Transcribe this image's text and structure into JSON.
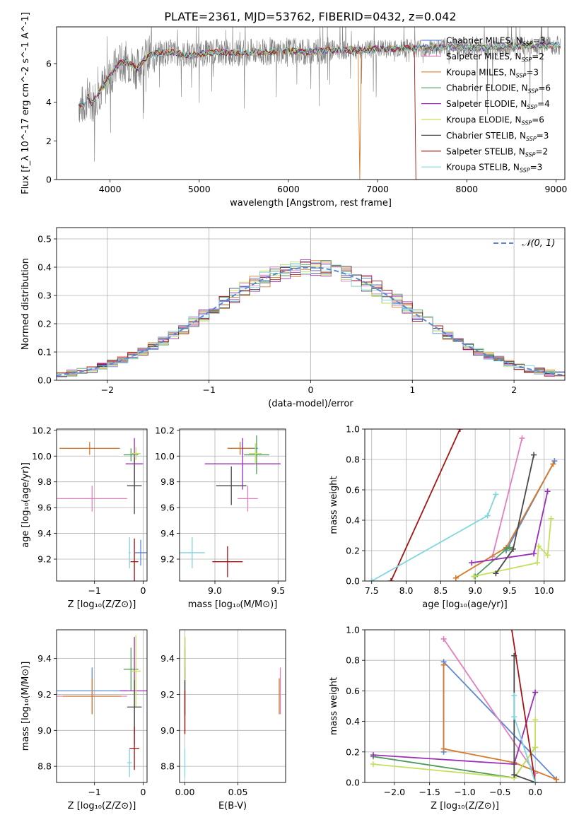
{
  "title": "PLATE=2361, MJD=53762, FIBERID=0432, z=0.042",
  "colors": {
    "chabrier_miles": "#5a87d6",
    "salpeter_miles": "#e47fbf",
    "kroupa_miles": "#d77a2a",
    "chabrier_elodie": "#4f9b5a",
    "salpeter_elodie": "#9b2fb8",
    "kroupa_elodie": "#c4e05a",
    "chabrier_stelib": "#4a4a4a",
    "salpeter_stelib": "#a31515",
    "kroupa_stelib": "#7fd6df",
    "data": "#808080",
    "normal": "#5a87d6"
  },
  "chart_data": [
    {
      "panel": "spectrum",
      "type": "line",
      "xlabel": "wavelength [Angstrom, rest frame]",
      "ylabel": "Flux [f_λ 10^-17 erg cm^-2 s^-1 A^-1]",
      "xlim": [
        3400,
        9100
      ],
      "ylim": [
        0,
        7.9
      ],
      "xticks": [
        "4000",
        "5000",
        "6000",
        "7000",
        "8000",
        "9000"
      ],
      "yticks": [
        "0",
        "2",
        "4",
        "6"
      ],
      "legend_position": "upper right",
      "series": [
        {
          "name": "Chabrier MILES, N_SSP=3",
          "key": "chabrier_miles"
        },
        {
          "name": "Salpeter MILES, N_SSP=2",
          "key": "salpeter_miles"
        },
        {
          "name": "Kroupa MILES, N_SSP=3",
          "key": "kroupa_miles"
        },
        {
          "name": "Chabrier ELODIE, N_SSP=6",
          "key": "chabrier_elodie"
        },
        {
          "name": "Salpeter ELODIE, N_SSP=4",
          "key": "salpeter_elodie"
        },
        {
          "name": "Kroupa ELODIE, N_SSP=6",
          "key": "kroupa_elodie"
        },
        {
          "name": "Chabrier STELIB, N_SSP=3",
          "key": "chabrier_stelib"
        },
        {
          "name": "Salpeter STELIB, N_SSP=2",
          "key": "salpeter_stelib"
        },
        {
          "name": "Kroupa STELIB, N_SSP=3",
          "key": "kroupa_stelib"
        }
      ],
      "continuum": [
        [
          3650,
          3.9
        ],
        [
          3700,
          3.8
        ],
        [
          3750,
          4.3
        ],
        [
          3800,
          3.9
        ],
        [
          3850,
          4.4
        ],
        [
          3900,
          4.7
        ],
        [
          3950,
          4.9
        ],
        [
          4000,
          5.4
        ],
        [
          4100,
          6.0
        ],
        [
          4200,
          6.1
        ],
        [
          4300,
          5.7
        ],
        [
          4400,
          6.3
        ],
        [
          4500,
          6.5
        ],
        [
          4700,
          6.6
        ],
        [
          4900,
          6.4
        ],
        [
          5000,
          6.5
        ],
        [
          5200,
          6.6
        ],
        [
          5400,
          6.55
        ],
        [
          5600,
          6.6
        ],
        [
          5800,
          6.6
        ],
        [
          6000,
          6.65
        ],
        [
          6200,
          6.6
        ],
        [
          6500,
          6.7
        ],
        [
          6800,
          6.7
        ],
        [
          7000,
          6.75
        ],
        [
          7400,
          6.8
        ],
        [
          7800,
          6.85
        ],
        [
          8200,
          6.8
        ],
        [
          8600,
          6.9
        ],
        [
          9000,
          6.95
        ]
      ],
      "notes": "data spectrum plotted in gray with model fits overlaid"
    },
    {
      "panel": "residuals",
      "type": "line",
      "xlabel": "(data-model)/error",
      "ylabel": "Normed distribution",
      "xlim": [
        -2.5,
        2.5
      ],
      "ylim": [
        0,
        0.54
      ],
      "xticks": [
        "−2",
        "−1",
        "0",
        "1",
        "2"
      ],
      "yticks": [
        "0.0",
        "0.1",
        "0.2",
        "0.3",
        "0.4",
        "0.5"
      ],
      "legend": "𝒩(0, 1)",
      "normal": {
        "mu": 0,
        "sigma": 1
      }
    },
    {
      "panel": "age_vs_Z",
      "type": "scatter",
      "xlabel": "Z [log₁₀(Z/Z⊙)]",
      "ylabel": "age  [log₁₀(age/yr)]",
      "xlim": [
        -1.78,
        0.08
      ],
      "ylim": [
        9.03,
        10.21
      ],
      "xticks": [
        "−1",
        "0"
      ],
      "yticks": [
        "9.2",
        "9.4",
        "9.6",
        "9.8",
        "10.0",
        "10.2"
      ],
      "points": [
        {
          "key": "chabrier_miles",
          "x": -0.05,
          "y": 9.25,
          "ex": 0.12,
          "ey": 0.1
        },
        {
          "key": "salpeter_miles",
          "x": -1.05,
          "y": 9.67,
          "ex": 0.72,
          "ey": 0.1
        },
        {
          "key": "kroupa_miles",
          "x": -1.1,
          "y": 10.06,
          "ex": 0.62,
          "ey": 0.05
        },
        {
          "key": "chabrier_elodie",
          "x": -0.25,
          "y": 10.01,
          "ex": 0.15,
          "ey": 0.05
        },
        {
          "key": "salpeter_elodie",
          "x": -0.18,
          "y": 9.94,
          "ex": 0.18,
          "ey": 0.2
        },
        {
          "key": "kroupa_elodie",
          "x": -0.15,
          "y": 10.02,
          "ex": 0.1,
          "ey": 0.05
        },
        {
          "key": "chabrier_stelib",
          "x": -0.18,
          "y": 9.77,
          "ex": 0.15,
          "ey": 0.22
        },
        {
          "key": "salpeter_stelib",
          "x": -0.18,
          "y": 9.18,
          "ex": 0.08,
          "ey": 0.18
        },
        {
          "key": "kroupa_stelib",
          "x": -0.28,
          "y": 9.25,
          "ex": 0.02,
          "ey": 0.12
        }
      ]
    },
    {
      "panel": "age_vs_mass",
      "type": "scatter",
      "xlabel": "mass [log₁₀(M/M⊙)]",
      "ylabel": "",
      "xlim": [
        8.72,
        9.56
      ],
      "ylim": [
        9.03,
        10.21
      ],
      "xticks": [
        "9.0",
        "9.5"
      ],
      "yticks": [
        "9.2",
        "9.4",
        "9.6",
        "9.8",
        "10.0",
        "10.2"
      ],
      "points": [
        {
          "key": "chabrier_miles",
          "x": 9.22,
          "y": 10.06,
          "ex": 0.12,
          "ey": 0.05
        },
        {
          "key": "salpeter_miles",
          "x": 9.26,
          "y": 9.67,
          "ex": 0.08,
          "ey": 0.1
        },
        {
          "key": "kroupa_miles",
          "x": 9.2,
          "y": 10.06,
          "ex": 0.1,
          "ey": 0.05
        },
        {
          "key": "chabrier_elodie",
          "x": 9.33,
          "y": 10.01,
          "ex": 0.1,
          "ey": 0.15
        },
        {
          "key": "salpeter_elodie",
          "x": 9.22,
          "y": 9.94,
          "ex": 0.3,
          "ey": 0.2
        },
        {
          "key": "kroupa_elodie",
          "x": 9.32,
          "y": 10.02,
          "ex": 0.05,
          "ey": 0.08
        },
        {
          "key": "chabrier_stelib",
          "x": 9.13,
          "y": 9.77,
          "ex": 0.12,
          "ey": 0.15
        },
        {
          "key": "salpeter_stelib",
          "x": 9.1,
          "y": 9.18,
          "ex": 0.12,
          "ey": 0.12
        },
        {
          "key": "kroupa_stelib",
          "x": 8.82,
          "y": 9.25,
          "ex": 0.1,
          "ey": 0.12
        }
      ]
    },
    {
      "panel": "mass_weight_vs_age",
      "type": "line",
      "xlabel": "age  [log₁₀(age/yr)]",
      "ylabel": "mass weight",
      "xlim": [
        7.4,
        10.3
      ],
      "ylim": [
        0,
        1.0
      ],
      "xticks": [
        "7.5",
        "8.0",
        "8.5",
        "9.0",
        "9.5",
        "10.0"
      ],
      "yticks": [
        "0.0",
        "0.2",
        "0.4",
        "0.6",
        "0.8",
        "1.0"
      ],
      "series": [
        {
          "key": "chabrier_miles",
          "points": [
            [
              9.45,
              0.2
            ],
            [
              10.15,
              0.79
            ]
          ]
        },
        {
          "key": "salpeter_miles",
          "points": [
            [
              9.25,
              0.16
            ],
            [
              9.68,
              0.94
            ]
          ]
        },
        {
          "key": "kroupa_miles",
          "points": [
            [
              8.72,
              0.02
            ],
            [
              9.45,
              0.22
            ],
            [
              10.13,
              0.77
            ]
          ]
        },
        {
          "key": "chabrier_elodie",
          "points": [
            [
              9.0,
              0.03
            ],
            [
              9.45,
              0.21
            ],
            [
              9.5,
              0.22
            ]
          ]
        },
        {
          "key": "salpeter_elodie",
          "points": [
            [
              8.95,
              0.12
            ],
            [
              9.85,
              0.18
            ],
            [
              10.05,
              0.59
            ]
          ]
        },
        {
          "key": "kroupa_elodie",
          "points": [
            [
              8.98,
              0.03
            ],
            [
              9.9,
              0.12
            ],
            [
              9.92,
              0.23
            ],
            [
              10.05,
              0.17
            ],
            [
              10.1,
              0.41
            ]
          ]
        },
        {
          "key": "chabrier_stelib",
          "points": [
            [
              9.3,
              0.05
            ],
            [
              9.55,
              0.21
            ],
            [
              9.85,
              0.83
            ]
          ]
        },
        {
          "key": "salpeter_stelib",
          "points": [
            [
              7.78,
              0.0
            ],
            [
              8.78,
              1.0
            ]
          ]
        },
        {
          "key": "kroupa_stelib",
          "points": [
            [
              7.5,
              0.0
            ],
            [
              9.18,
              0.43
            ],
            [
              9.3,
              0.57
            ]
          ]
        }
      ]
    },
    {
      "panel": "mass_vs_Z",
      "type": "scatter",
      "xlabel": "Z [log₁₀(Z/Z⊙)]",
      "ylabel": "mass [log₁₀(M/M⊙)]",
      "xlim": [
        -1.78,
        0.08
      ],
      "ylim": [
        8.71,
        9.56
      ],
      "xticks": [
        "−1",
        "0"
      ],
      "yticks": [
        "8.8",
        "9.0",
        "9.2",
        "9.4"
      ],
      "points": [
        {
          "key": "chabrier_miles",
          "x": -1.05,
          "y": 9.22,
          "ex": 0.72,
          "ey": 0.13
        },
        {
          "key": "salpeter_miles",
          "x": -1.05,
          "y": 9.19,
          "ex": 0.72,
          "ey": 0.08
        },
        {
          "key": "kroupa_miles",
          "x": -1.05,
          "y": 9.19,
          "ex": 0.6,
          "ey": 0.1
        },
        {
          "key": "chabrier_elodie",
          "x": -0.25,
          "y": 9.34,
          "ex": 0.15,
          "ey": 0.12
        },
        {
          "key": "salpeter_elodie",
          "x": -0.18,
          "y": 9.22,
          "ex": 0.3,
          "ey": 0.3
        },
        {
          "key": "kroupa_elodie",
          "x": -0.15,
          "y": 9.33,
          "ex": 0.1,
          "ey": 0.2
        },
        {
          "key": "chabrier_stelib",
          "x": -0.18,
          "y": 9.13,
          "ex": 0.15,
          "ey": 0.15
        },
        {
          "key": "salpeter_stelib",
          "x": -0.18,
          "y": 8.9,
          "ex": 0.1,
          "ey": 0.12
        },
        {
          "key": "kroupa_stelib",
          "x": -0.28,
          "y": 8.82,
          "ex": 0.05,
          "ey": 0.08
        }
      ]
    },
    {
      "panel": "mass_vs_EBV",
      "type": "scatter",
      "xlabel": "E(B-V)",
      "ylabel": "",
      "xlim": [
        -0.005,
        0.095
      ],
      "ylim": [
        8.71,
        9.56
      ],
      "xticks": [
        "0.00",
        "0.05"
      ],
      "yticks": [
        "8.8",
        "9.0",
        "9.2",
        "9.4"
      ],
      "points": [
        {
          "key": "chabrier_miles",
          "x": 0.0,
          "y": 9.22,
          "ex": 0.0,
          "ey": 0.13
        },
        {
          "key": "salpeter_miles",
          "x": 0.09,
          "y": 9.22,
          "ex": 0.0,
          "ey": 0.13
        },
        {
          "key": "kroupa_miles",
          "x": 0.089,
          "y": 9.19,
          "ex": 0.0,
          "ey": 0.1
        },
        {
          "key": "chabrier_elodie",
          "x": 0.0,
          "y": 9.34,
          "ex": 0.0,
          "ey": 0.12
        },
        {
          "key": "salpeter_elodie",
          "x": 0.0,
          "y": 9.3,
          "ex": 0.0,
          "ey": 0.22
        },
        {
          "key": "kroupa_elodie",
          "x": 0.0,
          "y": 9.33,
          "ex": 0.0,
          "ey": 0.2
        },
        {
          "key": "chabrier_stelib",
          "x": 0.0,
          "y": 9.13,
          "ex": 0.0,
          "ey": 0.15
        },
        {
          "key": "salpeter_stelib",
          "x": 0.0,
          "y": 9.1,
          "ex": 0.0,
          "ey": 0.12
        },
        {
          "key": "kroupa_stelib",
          "x": 0.0,
          "y": 8.82,
          "ex": 0.0,
          "ey": 0.08
        }
      ]
    },
    {
      "panel": "mass_weight_vs_Z",
      "type": "line",
      "xlabel": "Z [log₁₀(Z/Z⊙)]",
      "ylabel": "mass weight",
      "xlim": [
        -2.42,
        0.42
      ],
      "ylim": [
        0,
        1.0
      ],
      "xticks": [
        "−2.0",
        "−1.5",
        "−1.0",
        "−0.5",
        "0.0"
      ],
      "yticks": [
        "0.0",
        "0.2",
        "0.4",
        "0.6",
        "0.8",
        "1.0"
      ],
      "series": [
        {
          "key": "chabrier_miles",
          "points": [
            [
              -1.3,
              0.2
            ],
            [
              -1.3,
              0.79
            ],
            [
              0.3,
              0.02
            ]
          ]
        },
        {
          "key": "salpeter_miles",
          "points": [
            [
              -1.3,
              0.94
            ],
            [
              0.0,
              0.06
            ]
          ]
        },
        {
          "key": "kroupa_miles",
          "points": [
            [
              -1.3,
              0.77
            ],
            [
              -1.3,
              0.22
            ],
            [
              -0.3,
              0.13
            ],
            [
              0.3,
              0.02
            ]
          ]
        },
        {
          "key": "chabrier_elodie",
          "points": [
            [
              -2.3,
              0.17
            ],
            [
              -0.3,
              0.03
            ],
            [
              0.0,
              0.23
            ]
          ]
        },
        {
          "key": "salpeter_elodie",
          "points": [
            [
              -2.3,
              0.18
            ],
            [
              -0.3,
              0.12
            ],
            [
              0.0,
              0.59
            ]
          ]
        },
        {
          "key": "kroupa_elodie",
          "points": [
            [
              -2.3,
              0.12
            ],
            [
              -0.3,
              0.03
            ],
            [
              0.0,
              0.23
            ],
            [
              0.0,
              0.41
            ]
          ]
        },
        {
          "key": "chabrier_stelib",
          "points": [
            [
              -0.3,
              0.83
            ],
            [
              -0.3,
              0.05
            ],
            [
              0.0,
              0.0
            ]
          ]
        },
        {
          "key": "salpeter_stelib",
          "points": [
            [
              -0.4,
              1.2
            ],
            [
              0.0,
              0.0
            ]
          ]
        },
        {
          "key": "kroupa_stelib",
          "points": [
            [
              -0.3,
              0.57
            ],
            [
              -0.3,
              0.43
            ],
            [
              0.0,
              0.0
            ]
          ]
        }
      ]
    }
  ]
}
